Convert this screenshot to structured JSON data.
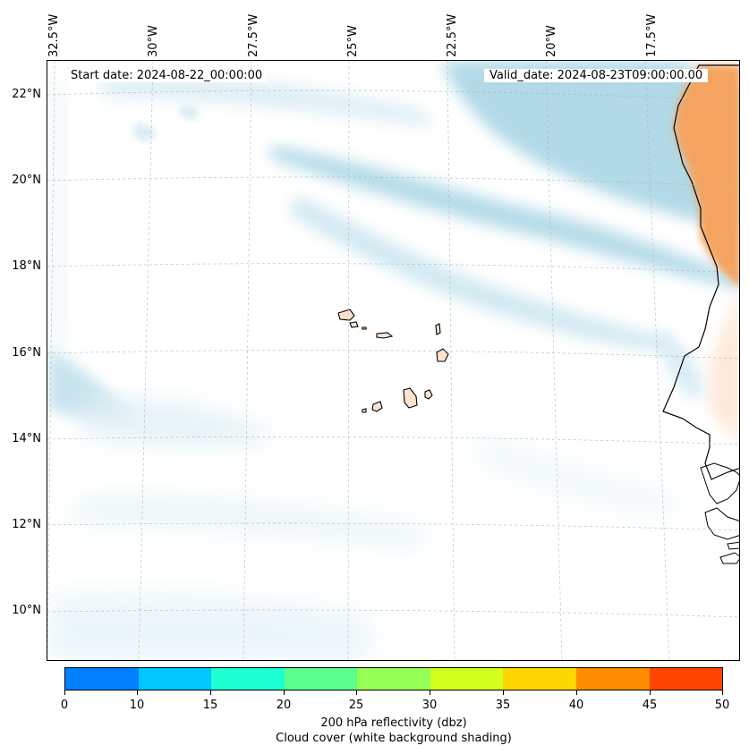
{
  "map": {
    "start_date": "Start date: 2024-08-22_00:00:00",
    "valid_date": "Valid_date: 2024-08-23T09:00:00.00",
    "lon_labels": [
      "32.5°W",
      "30°W",
      "27.5°W",
      "25°W",
      "22.5°W",
      "20°W",
      "17.5°W"
    ],
    "lat_labels": [
      "22°N",
      "20°N",
      "18°N",
      "16°N",
      "14°N",
      "12°N",
      "10°N"
    ]
  },
  "colorbar": {
    "colors": [
      "#0080ff",
      "#00c8ff",
      "#1effd2",
      "#5aff8c",
      "#96ff55",
      "#d2ff1e",
      "#ffd700",
      "#ff8c00",
      "#ff4500"
    ],
    "ticks": [
      "0",
      "10",
      "15",
      "20",
      "25",
      "30",
      "35",
      "40",
      "45",
      "50"
    ],
    "label_line1": "200 hPa reflectivity (dbz)",
    "label_line2": "Cloud cover (white background shading)"
  }
}
